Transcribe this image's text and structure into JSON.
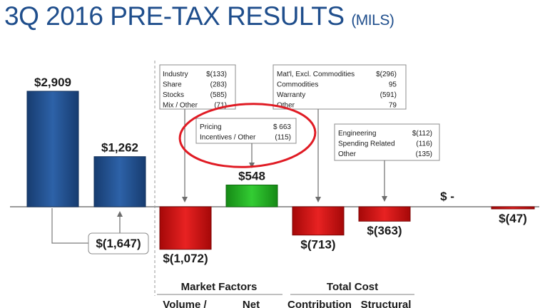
{
  "title": "3Q 2016 PRE-TAX RESULTS",
  "title_unit": "(MILS)",
  "colors": {
    "navy": "#1f4e8c",
    "red": "#d01010",
    "green": "#1fae1f",
    "title": "#1f4e8c",
    "annotation_ring": "#e01b24"
  },
  "chart_data": {
    "type": "bar",
    "title": "3Q 2016 PRE-TAX RESULTS",
    "unit": "(MILS)",
    "bars": [
      {
        "id": "b0",
        "label": "$2,909",
        "value": 2909,
        "color": "navy"
      },
      {
        "id": "b1",
        "label": "$1,262",
        "value": 1262,
        "color": "navy"
      },
      {
        "id": "b2",
        "label": "$(1,072)",
        "value": -1072,
        "color": "red"
      },
      {
        "id": "b3",
        "label": "$548",
        "value": 548,
        "color": "green"
      },
      {
        "id": "b4",
        "label": "$(713)",
        "value": -713,
        "color": "red"
      },
      {
        "id": "b5",
        "label": "$(363)",
        "value": -363,
        "color": "red"
      },
      {
        "id": "b6",
        "label": "$ -",
        "value": 0,
        "color": "none"
      },
      {
        "id": "b7",
        "label": "$(47)",
        "value": -47,
        "color": "red"
      }
    ],
    "difference_label": "$(1,647)",
    "group_headers": [
      "Market Factors",
      "Total Cost"
    ],
    "sub_headers": [
      "Volume /",
      "Net",
      "Contribution",
      "Structural"
    ],
    "callouts": [
      {
        "id": "c1",
        "rows": [
          [
            "Industry",
            "$(133)"
          ],
          [
            "Share",
            "(283)"
          ],
          [
            "Stocks",
            "(585)"
          ],
          [
            "Mix / Other",
            "(71)"
          ]
        ]
      },
      {
        "id": "c2",
        "rows": [
          [
            "Pricing",
            "$ 663"
          ],
          [
            "Incentives / Other",
            "(115)"
          ]
        ]
      },
      {
        "id": "c3",
        "rows": [
          [
            "Mat'l, Excl. Commodities",
            "$(296)"
          ],
          [
            "Commodities",
            "95"
          ],
          [
            "Warranty",
            "(591)"
          ],
          [
            "Other",
            "79"
          ]
        ]
      },
      {
        "id": "c4",
        "rows": [
          [
            "Engineering",
            "$(112)"
          ],
          [
            "Spending Related",
            "(116)"
          ],
          [
            "Other",
            "(135)"
          ]
        ]
      }
    ]
  }
}
